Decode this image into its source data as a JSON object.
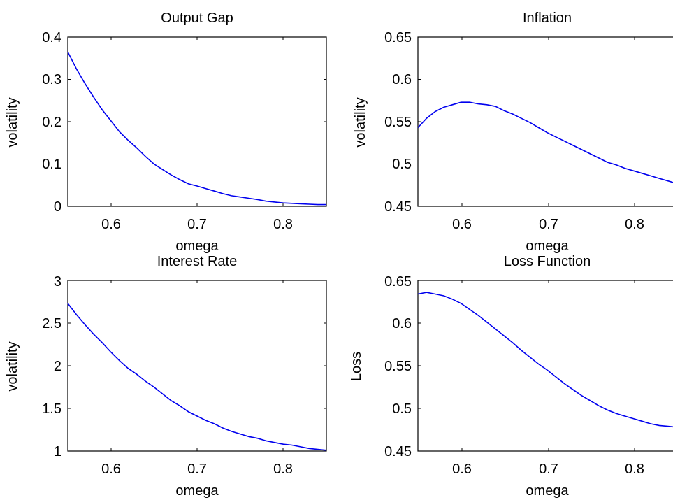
{
  "figure": {
    "line_color": "#0000ee",
    "axes_color": "#000000",
    "background": "#ffffff"
  },
  "chart_data": [
    {
      "type": "line",
      "title": "Output Gap",
      "xlabel": "omega",
      "ylabel": "volatility",
      "xlim": [
        0.55,
        0.85
      ],
      "ylim": [
        0,
        0.4
      ],
      "xticks": [
        0.6,
        0.7,
        0.8
      ],
      "xtick_labels": [
        "0.6",
        "0.7",
        "0.8"
      ],
      "yticks": [
        0,
        0.1,
        0.2,
        0.3,
        0.4
      ],
      "ytick_labels": [
        "0",
        "0.1",
        "0.2",
        "0.3",
        "0.4"
      ],
      "grid": false,
      "series": [
        {
          "x": [
            0.55,
            0.56,
            0.57,
            0.58,
            0.59,
            0.6,
            0.61,
            0.62,
            0.63,
            0.64,
            0.65,
            0.66,
            0.67,
            0.68,
            0.69,
            0.7,
            0.71,
            0.72,
            0.73,
            0.74,
            0.75,
            0.76,
            0.77,
            0.78,
            0.79,
            0.8,
            0.81,
            0.82,
            0.83,
            0.84,
            0.85
          ],
          "y": [
            0.365,
            0.325,
            0.29,
            0.258,
            0.228,
            0.202,
            0.176,
            0.156,
            0.138,
            0.118,
            0.1,
            0.087,
            0.074,
            0.063,
            0.053,
            0.048,
            0.042,
            0.036,
            0.03,
            0.025,
            0.022,
            0.019,
            0.016,
            0.012,
            0.01,
            0.008,
            0.007,
            0.006,
            0.005,
            0.004,
            0.004
          ]
        }
      ]
    },
    {
      "type": "line",
      "title": "Inflation",
      "xlabel": "omega",
      "ylabel": "volatility",
      "xlim": [
        0.55,
        0.85
      ],
      "ylim": [
        0.45,
        0.65
      ],
      "xticks": [
        0.6,
        0.7,
        0.8
      ],
      "xtick_labels": [
        "0.6",
        "0.7",
        "0.8"
      ],
      "yticks": [
        0.45,
        0.5,
        0.55,
        0.6,
        0.65
      ],
      "ytick_labels": [
        "0.45",
        "0.5",
        "0.55",
        "0.6",
        "0.65"
      ],
      "grid": false,
      "series": [
        {
          "x": [
            0.55,
            0.56,
            0.57,
            0.58,
            0.59,
            0.6,
            0.61,
            0.62,
            0.63,
            0.64,
            0.65,
            0.66,
            0.67,
            0.68,
            0.69,
            0.7,
            0.71,
            0.72,
            0.73,
            0.74,
            0.75,
            0.76,
            0.77,
            0.78,
            0.79,
            0.8,
            0.81,
            0.82,
            0.83,
            0.84,
            0.85
          ],
          "y": [
            0.543,
            0.554,
            0.562,
            0.567,
            0.57,
            0.573,
            0.573,
            0.571,
            0.57,
            0.568,
            0.563,
            0.559,
            0.554,
            0.549,
            0.543,
            0.537,
            0.532,
            0.527,
            0.522,
            0.517,
            0.512,
            0.507,
            0.502,
            0.499,
            0.495,
            0.492,
            0.489,
            0.486,
            0.483,
            0.48,
            0.477
          ]
        }
      ]
    },
    {
      "type": "line",
      "title": "Interest Rate",
      "xlabel": "omega",
      "ylabel": "volatility",
      "xlim": [
        0.55,
        0.85
      ],
      "ylim": [
        1,
        3
      ],
      "xticks": [
        0.6,
        0.7,
        0.8
      ],
      "xtick_labels": [
        "0.6",
        "0.7",
        "0.8"
      ],
      "yticks": [
        1,
        1.5,
        2,
        2.5,
        3
      ],
      "ytick_labels": [
        "1",
        "1.5",
        "2",
        "2.5",
        "3"
      ],
      "grid": false,
      "series": [
        {
          "x": [
            0.55,
            0.56,
            0.57,
            0.58,
            0.59,
            0.6,
            0.61,
            0.62,
            0.63,
            0.64,
            0.65,
            0.66,
            0.67,
            0.68,
            0.69,
            0.7,
            0.71,
            0.72,
            0.73,
            0.74,
            0.75,
            0.76,
            0.77,
            0.78,
            0.79,
            0.8,
            0.81,
            0.82,
            0.83,
            0.84,
            0.85
          ],
          "y": [
            2.73,
            2.6,
            2.48,
            2.37,
            2.27,
            2.16,
            2.06,
            1.97,
            1.9,
            1.82,
            1.75,
            1.67,
            1.59,
            1.53,
            1.46,
            1.41,
            1.36,
            1.32,
            1.27,
            1.23,
            1.2,
            1.17,
            1.15,
            1.12,
            1.1,
            1.08,
            1.07,
            1.05,
            1.03,
            1.02,
            1.01
          ]
        }
      ]
    },
    {
      "type": "line",
      "title": "Loss Function",
      "xlabel": "omega",
      "ylabel": "Loss",
      "xlim": [
        0.55,
        0.85
      ],
      "ylim": [
        0.45,
        0.65
      ],
      "xticks": [
        0.6,
        0.7,
        0.8
      ],
      "xtick_labels": [
        "0.6",
        "0.7",
        "0.8"
      ],
      "yticks": [
        0.45,
        0.5,
        0.55,
        0.6,
        0.65
      ],
      "ytick_labels": [
        "0.45",
        "0.5",
        "0.55",
        "0.6",
        "0.65"
      ],
      "grid": false,
      "series": [
        {
          "x": [
            0.55,
            0.56,
            0.57,
            0.58,
            0.59,
            0.6,
            0.61,
            0.62,
            0.63,
            0.64,
            0.65,
            0.66,
            0.67,
            0.68,
            0.69,
            0.7,
            0.71,
            0.72,
            0.73,
            0.74,
            0.75,
            0.76,
            0.77,
            0.78,
            0.79,
            0.8,
            0.81,
            0.82,
            0.83,
            0.84,
            0.85
          ],
          "y": [
            0.634,
            0.636,
            0.634,
            0.632,
            0.628,
            0.623,
            0.616,
            0.609,
            0.601,
            0.593,
            0.585,
            0.577,
            0.568,
            0.56,
            0.552,
            0.545,
            0.537,
            0.529,
            0.522,
            0.515,
            0.509,
            0.503,
            0.498,
            0.494,
            0.491,
            0.488,
            0.485,
            0.482,
            0.48,
            0.479,
            0.478
          ]
        }
      ]
    }
  ]
}
